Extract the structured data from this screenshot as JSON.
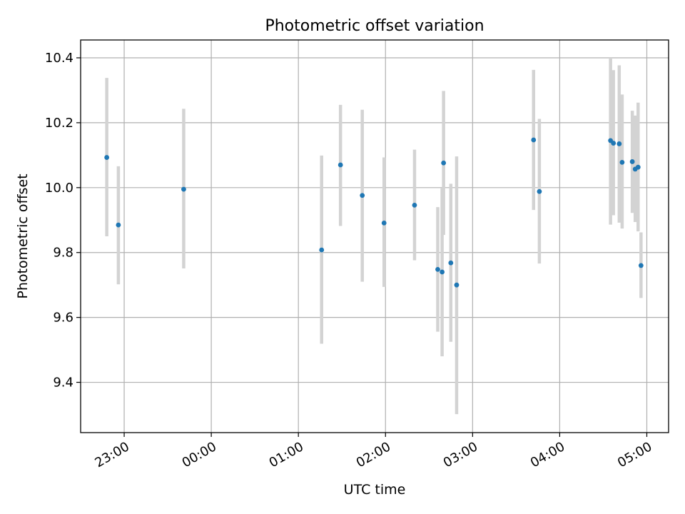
{
  "chart_data": {
    "type": "scatter",
    "title": "Photometric offset variation",
    "xlabel": "UTC time",
    "ylabel": "Photometric offset",
    "x_ticks": [
      "23:00",
      "00:00",
      "01:00",
      "02:00",
      "03:00",
      "04:00",
      "05:00"
    ],
    "x_tick_hours": [
      -1,
      0,
      1,
      2,
      3,
      4,
      5
    ],
    "xlim_hours": [
      -1.5,
      5.25
    ],
    "y_ticks": [
      "9.4",
      "9.6",
      "9.8",
      "10.0",
      "10.2",
      "10.4"
    ],
    "ylim": [
      9.245,
      10.455
    ],
    "grid": true,
    "colors": {
      "point": "#1f77b4",
      "errorbar": "#d3d3d3",
      "grid": "#b0b0b0"
    },
    "points": [
      {
        "t": "22:48",
        "y": 10.093,
        "lo": 9.85,
        "hi": 10.338
      },
      {
        "t": "22:56",
        "y": 9.885,
        "lo": 9.702,
        "hi": 10.066
      },
      {
        "t": "23:41",
        "y": 9.995,
        "lo": 9.751,
        "hi": 10.243
      },
      {
        "t": "01:16",
        "y": 9.808,
        "lo": 9.519,
        "hi": 10.099
      },
      {
        "t": "01:29",
        "y": 10.07,
        "lo": 9.882,
        "hi": 10.255
      },
      {
        "t": "01:44",
        "y": 9.976,
        "lo": 9.71,
        "hi": 10.24
      },
      {
        "t": "01:59",
        "y": 9.891,
        "lo": 9.694,
        "hi": 10.093
      },
      {
        "t": "02:20",
        "y": 9.946,
        "lo": 9.776,
        "hi": 10.117
      },
      {
        "t": "02:36",
        "y": 9.748,
        "lo": 9.556,
        "hi": 9.94
      },
      {
        "t": "02:39",
        "y": 9.74,
        "lo": 9.48,
        "hi": 9.998
      },
      {
        "t": "02:40",
        "y": 10.076,
        "lo": 9.854,
        "hi": 10.298
      },
      {
        "t": "02:45",
        "y": 9.768,
        "lo": 9.525,
        "hi": 10.012
      },
      {
        "t": "02:49",
        "y": 9.7,
        "lo": 9.302,
        "hi": 10.096
      },
      {
        "t": "03:42",
        "y": 10.147,
        "lo": 9.931,
        "hi": 10.363
      },
      {
        "t": "03:46",
        "y": 9.988,
        "lo": 9.766,
        "hi": 10.212
      },
      {
        "t": "04:35",
        "y": 10.145,
        "lo": 9.886,
        "hi": 10.4
      },
      {
        "t": "04:37",
        "y": 10.137,
        "lo": 9.915,
        "hi": 10.362
      },
      {
        "t": "04:41",
        "y": 10.135,
        "lo": 9.892,
        "hi": 10.377
      },
      {
        "t": "04:43",
        "y": 10.078,
        "lo": 9.874,
        "hi": 10.287
      },
      {
        "t": "04:50",
        "y": 10.08,
        "lo": 9.922,
        "hi": 10.237
      },
      {
        "t": "04:52",
        "y": 10.057,
        "lo": 9.894,
        "hi": 10.222
      },
      {
        "t": "04:54",
        "y": 10.063,
        "lo": 9.865,
        "hi": 10.262
      },
      {
        "t": "04:56",
        "y": 9.76,
        "lo": 9.66,
        "hi": 9.862
      }
    ]
  }
}
